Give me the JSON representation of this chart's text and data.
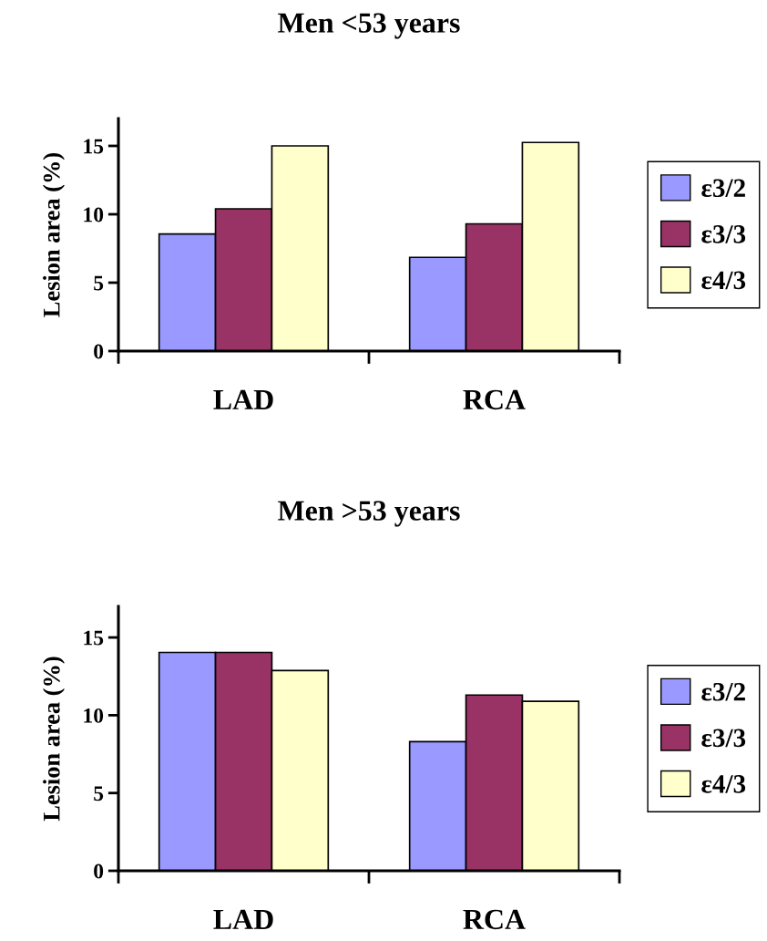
{
  "chart_data": [
    {
      "type": "bar",
      "title": "Men <53 years",
      "ylabel": "Lesion area (%)",
      "categories": [
        "LAD",
        "RCA"
      ],
      "ylim": [
        0,
        17
      ],
      "yticks": [
        0,
        5,
        10,
        15
      ],
      "legend": "right",
      "grid": false,
      "series": [
        {
          "name": "ε3/2",
          "color": "#9999ff",
          "values": [
            8.56,
            6.85
          ]
        },
        {
          "name": "ε3/3",
          "color": "#993366",
          "values": [
            10.4,
            9.3
          ]
        },
        {
          "name": "ε4/3",
          "color": "#ffffcc",
          "values": [
            15.0,
            15.25
          ]
        }
      ]
    },
    {
      "type": "bar",
      "title": "Men >53 years",
      "ylabel": "Lesion area (%)",
      "categories": [
        "LAD",
        "RCA"
      ],
      "ylim": [
        0,
        17
      ],
      "yticks": [
        0,
        5,
        10,
        15
      ],
      "legend": "right",
      "grid": false,
      "series": [
        {
          "name": "ε3/2",
          "color": "#9999ff",
          "values": [
            14.04,
            8.3
          ]
        },
        {
          "name": "ε3/3",
          "color": "#993366",
          "values": [
            14.04,
            11.3
          ]
        },
        {
          "name": "ε4/3",
          "color": "#ffffcc",
          "values": [
            12.87,
            10.9
          ]
        }
      ]
    }
  ]
}
